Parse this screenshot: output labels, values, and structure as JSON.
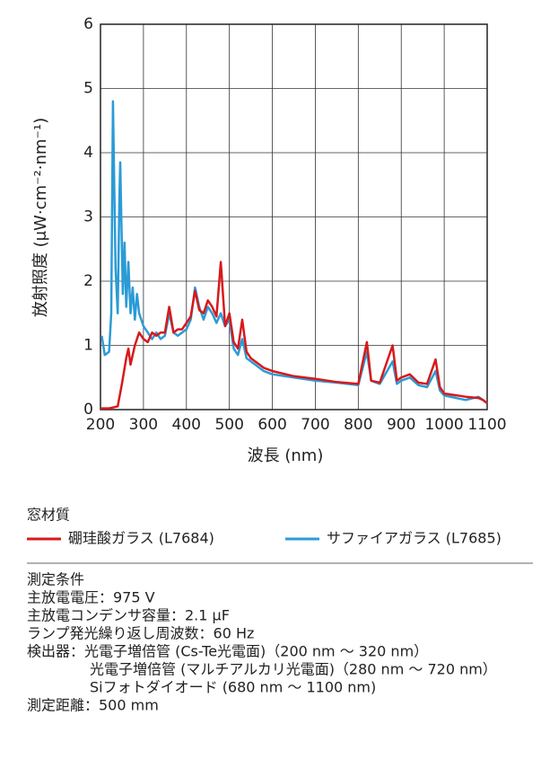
{
  "chart_data": {
    "type": "line",
    "xlabel": "波長 (nm)",
    "ylabel": "放射照度 (μW·cm⁻²·nm⁻¹)",
    "xlim": [
      200,
      1100
    ],
    "xticks": [
      200,
      300,
      400,
      500,
      600,
      700,
      800,
      900,
      1000,
      1100
    ],
    "ylim": [
      0,
      6
    ],
    "yticks": [
      0,
      1,
      2,
      3,
      4,
      5,
      6
    ],
    "grid": true,
    "legend_title": "窓材質",
    "series": [
      {
        "name": "硼珪酸ガラス (L7684)",
        "color": "#d7191c",
        "x": [
          200,
          220,
          240,
          250,
          255,
          260,
          265,
          270,
          280,
          290,
          300,
          310,
          320,
          330,
          340,
          350,
          360,
          370,
          380,
          390,
          400,
          410,
          420,
          430,
          440,
          450,
          460,
          470,
          480,
          490,
          500,
          510,
          520,
          530,
          540,
          550,
          560,
          570,
          580,
          600,
          650,
          700,
          750,
          800,
          820,
          830,
          850,
          880,
          890,
          900,
          920,
          940,
          960,
          980,
          990,
          1000,
          1050,
          1080,
          1090,
          1100
        ],
        "values": [
          0.02,
          0.02,
          0.05,
          0.4,
          0.6,
          0.8,
          0.95,
          0.7,
          1.0,
          1.2,
          1.1,
          1.05,
          1.2,
          1.15,
          1.2,
          1.2,
          1.6,
          1.2,
          1.25,
          1.25,
          1.35,
          1.45,
          1.85,
          1.55,
          1.5,
          1.7,
          1.6,
          1.45,
          2.3,
          1.3,
          1.5,
          1.05,
          0.95,
          1.4,
          0.9,
          0.8,
          0.75,
          0.7,
          0.65,
          0.6,
          0.52,
          0.48,
          0.43,
          0.4,
          1.05,
          0.45,
          0.42,
          1.0,
          0.45,
          0.5,
          0.55,
          0.42,
          0.4,
          0.78,
          0.35,
          0.25,
          0.2,
          0.18,
          0.15,
          0.1
        ]
      },
      {
        "name": "サファイアガラス (L7685)",
        "color": "#2b9bd6",
        "x": [
          203,
          210,
          220,
          225,
          229,
          235,
          240,
          244,
          246,
          252,
          256,
          260,
          265,
          270,
          275,
          280,
          285,
          290,
          300,
          310,
          320,
          330,
          340,
          350,
          360,
          370,
          380,
          390,
          400,
          410,
          420,
          430,
          440,
          450,
          460,
          470,
          480,
          490,
          500,
          510,
          520,
          530,
          540,
          550,
          560,
          570,
          580,
          600,
          650,
          700,
          750,
          800,
          820,
          830,
          850,
          880,
          890,
          900,
          920,
          940,
          960,
          980,
          990,
          1000,
          1050,
          1080,
          1090,
          1100
        ],
        "values": [
          1.15,
          0.85,
          0.9,
          1.5,
          4.8,
          2.2,
          1.5,
          3.3,
          3.85,
          1.8,
          2.6,
          1.6,
          2.3,
          1.5,
          1.9,
          1.4,
          1.8,
          1.5,
          1.3,
          1.2,
          1.1,
          1.2,
          1.1,
          1.15,
          1.5,
          1.2,
          1.15,
          1.2,
          1.25,
          1.4,
          1.9,
          1.6,
          1.4,
          1.6,
          1.5,
          1.35,
          1.5,
          1.3,
          1.4,
          0.95,
          0.85,
          1.1,
          0.8,
          0.75,
          0.7,
          0.65,
          0.6,
          0.55,
          0.5,
          0.45,
          0.42,
          0.38,
          0.9,
          0.45,
          0.4,
          0.75,
          0.4,
          0.45,
          0.5,
          0.38,
          0.35,
          0.6,
          0.3,
          0.22,
          0.15,
          0.2,
          0.15,
          0.1
        ]
      }
    ]
  },
  "notes": {
    "title": "測定条件",
    "lines": [
      "主放電電圧：975 V",
      "主放電コンデンサ容量：2.1 μF",
      "ランプ発光繰り返し周波数：60 Hz",
      "検出器：光電子増倍管 (Cs-Te光電面)（200 nm ～ 320 nm）"
    ],
    "detector_lines": [
      "光電子増倍管 (マルチアルカリ光電面)（280 nm ～ 720 nm）",
      "Siフォトダイオード (680 nm ～ 1100 nm)"
    ],
    "last": "測定距離：500 mm"
  }
}
